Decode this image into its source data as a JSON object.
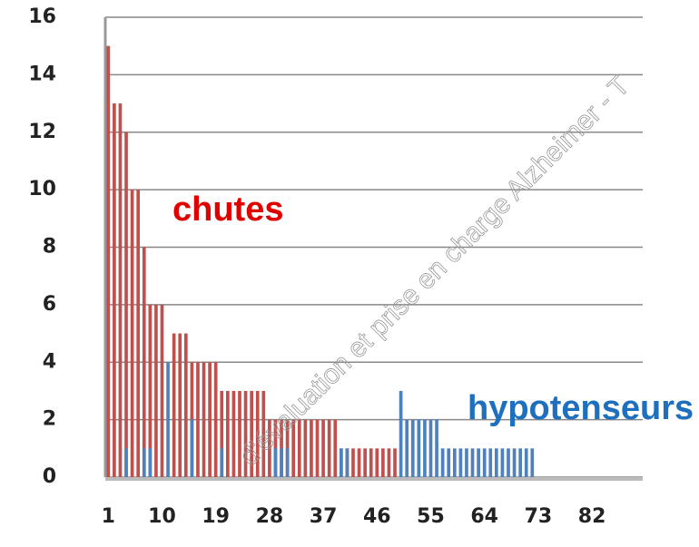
{
  "chart_data": {
    "type": "bar",
    "categories": [
      "1",
      null,
      null,
      null,
      null,
      null,
      null,
      null,
      null,
      "10",
      null,
      null,
      null,
      null,
      null,
      null,
      null,
      null,
      "19",
      null,
      null,
      null,
      null,
      null,
      null,
      null,
      null,
      "28",
      null,
      null,
      null,
      null,
      null,
      null,
      null,
      null,
      "37",
      null,
      null,
      null,
      null,
      null,
      null,
      null,
      null,
      "46",
      null,
      null,
      null,
      null,
      null,
      null,
      null,
      null,
      "55",
      null,
      null,
      null,
      null,
      null,
      null,
      null,
      null,
      "64",
      null,
      null,
      null,
      null,
      null,
      null,
      null,
      null,
      "73",
      null,
      null,
      null,
      null,
      null,
      null,
      null,
      null,
      "82",
      null,
      null,
      null,
      null,
      null,
      null,
      null,
      null
    ],
    "series": [
      {
        "name": "chutes",
        "color": "#c0504d",
        "values": [
          15,
          13,
          13,
          12,
          10,
          10,
          8,
          6,
          6,
          6,
          0,
          5,
          5,
          5,
          4,
          4,
          4,
          4,
          4,
          3,
          3,
          3,
          3,
          3,
          3,
          3,
          3,
          2,
          2,
          2,
          2,
          2,
          2,
          2,
          2,
          2,
          2,
          2,
          2,
          1,
          1,
          1,
          1,
          1,
          1,
          1,
          1,
          1,
          1,
          0,
          0,
          0,
          0,
          0,
          0,
          0,
          0,
          0,
          0,
          0,
          0,
          0,
          0,
          0,
          0,
          0,
          0,
          0,
          0,
          0,
          0,
          0,
          0,
          0,
          0,
          0,
          0,
          0,
          0,
          0,
          0,
          0,
          0,
          0,
          0,
          0,
          0,
          0,
          0,
          0
        ]
      },
      {
        "name": "hypotenseurs",
        "color": "#4f81bd",
        "values": [
          0,
          0,
          0,
          1,
          0,
          0,
          1,
          1,
          0,
          0,
          4,
          0,
          0,
          0,
          2,
          0,
          0,
          0,
          0,
          1,
          0,
          0,
          0,
          0,
          0,
          0,
          0,
          0,
          1,
          1,
          1,
          0,
          0,
          0,
          0,
          0,
          0,
          0,
          0,
          1,
          1,
          0,
          0,
          0,
          0,
          0,
          0,
          0,
          0,
          3,
          2,
          2,
          2,
          2,
          2,
          2,
          1,
          1,
          1,
          1,
          1,
          1,
          1,
          1,
          1,
          1,
          1,
          1,
          1,
          1,
          1,
          1,
          0,
          0,
          0,
          0,
          0,
          0,
          0,
          0,
          0,
          0,
          0,
          0,
          0,
          0,
          0,
          0,
          0,
          0
        ]
      }
    ],
    "ylim": [
      0,
      16
    ],
    "yticks": [
      0,
      2,
      4,
      6,
      8,
      10,
      12,
      14,
      16
    ],
    "grid": true,
    "watermark": "d'évaluation et prise en charge Alzheimer - T"
  }
}
